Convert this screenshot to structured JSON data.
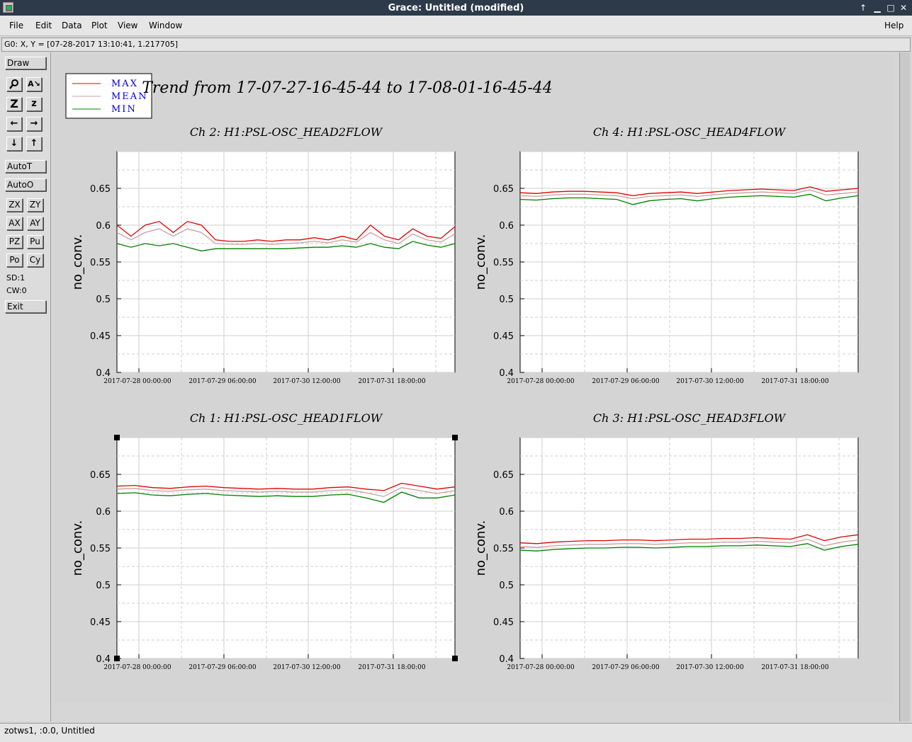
{
  "window": {
    "title": "Grace: Untitled (modified)"
  },
  "menu": {
    "file": "File",
    "edit": "Edit",
    "data": "Data",
    "plot": "Plot",
    "view": "View",
    "window": "Window",
    "help": "Help"
  },
  "location": "G0: X, Y = [07-28-2017 13:10:41, 1.217705]",
  "toolbar": {
    "draw": "Draw",
    "auto_t": "AutoT",
    "auto_o": "AutoO",
    "zx": "ZX",
    "zy": "ZY",
    "ax": "AX",
    "ay": "AY",
    "pz": "PZ",
    "pu": "Pu",
    "po": "Po",
    "cy": "Cy",
    "sd": "SD:1",
    "cw": "CW:0",
    "exit": "Exit",
    "icons": [
      "zoom-icon",
      "autoscale-text-icon",
      "zoom-z-icon",
      "zoom-z-small-icon",
      "arrow-left-icon",
      "arrow-right-icon",
      "arrow-down-icon",
      "arrow-up-icon"
    ]
  },
  "status": "zotws1, :0.0, Untitled",
  "chart_data": {
    "title": "Trend from 17-07-27-16-45-44 to 17-08-01-16-45-44",
    "legend": {
      "placement": "top-left",
      "entries": [
        {
          "label": "MAX",
          "color": "#e00000"
        },
        {
          "label": "MEAN",
          "color": "#c8a0a0"
        },
        {
          "label": "MIN",
          "color": "#008000"
        }
      ]
    },
    "colors": {
      "max": "#e00000",
      "mean": "#c8a0a0",
      "min": "#008000",
      "text": "#0000c8"
    },
    "x_ticks": [
      "2017-07-28 00:00:00",
      "2017-07-29 06:00:00",
      "2017-07-30 12:00:00",
      "2017-07-31 18:00:00"
    ],
    "y_ticks": [
      "0.4",
      "0.45",
      "0.5",
      "0.55",
      "0.6",
      "0.65"
    ],
    "ylabel": "no_conv.",
    "ylim": [
      0.4,
      0.7
    ],
    "grid": true,
    "charts": [
      {
        "type": "line",
        "title": "Ch 2: H1:PSL-OSC_HEAD2FLOW",
        "series": [
          {
            "name": "MAX",
            "values": [
              0.6,
              0.585,
              0.6,
              0.605,
              0.59,
              0.605,
              0.6,
              0.58,
              0.578,
              0.578,
              0.58,
              0.578,
              0.58,
              0.58,
              0.583,
              0.58,
              0.585,
              0.58,
              0.6,
              0.585,
              0.58,
              0.595,
              0.585,
              0.582,
              0.598
            ]
          },
          {
            "name": "MEAN",
            "values": [
              0.59,
              0.58,
              0.59,
              0.595,
              0.585,
              0.595,
              0.59,
              0.575,
              0.574,
              0.574,
              0.575,
              0.574,
              0.575,
              0.576,
              0.578,
              0.576,
              0.58,
              0.577,
              0.59,
              0.58,
              0.575,
              0.588,
              0.58,
              0.577,
              0.588
            ]
          },
          {
            "name": "MIN",
            "values": [
              0.575,
              0.57,
              0.575,
              0.572,
              0.575,
              0.57,
              0.565,
              0.568,
              0.568,
              0.568,
              0.568,
              0.568,
              0.568,
              0.569,
              0.57,
              0.57,
              0.572,
              0.57,
              0.575,
              0.57,
              0.568,
              0.578,
              0.573,
              0.57,
              0.575
            ]
          }
        ]
      },
      {
        "type": "line",
        "title": "Ch 4: H1:PSL-OSC_HEAD4FLOW",
        "series": [
          {
            "name": "MAX",
            "values": [
              0.644,
              0.643,
              0.645,
              0.646,
              0.646,
              0.645,
              0.644,
              0.64,
              0.643,
              0.644,
              0.645,
              0.643,
              0.645,
              0.647,
              0.648,
              0.649,
              0.648,
              0.647,
              0.652,
              0.646,
              0.648,
              0.65
            ]
          },
          {
            "name": "MEAN",
            "values": [
              0.64,
              0.639,
              0.641,
              0.642,
              0.642,
              0.641,
              0.64,
              0.636,
              0.639,
              0.64,
              0.641,
              0.639,
              0.641,
              0.643,
              0.644,
              0.645,
              0.644,
              0.643,
              0.648,
              0.641,
              0.643,
              0.645
            ]
          },
          {
            "name": "MIN",
            "values": [
              0.635,
              0.634,
              0.636,
              0.637,
              0.637,
              0.636,
              0.635,
              0.628,
              0.633,
              0.635,
              0.636,
              0.633,
              0.636,
              0.638,
              0.639,
              0.64,
              0.639,
              0.638,
              0.642,
              0.633,
              0.637,
              0.64
            ]
          }
        ]
      },
      {
        "type": "line",
        "title": "Ch 1: H1:PSL-OSC_HEAD1FLOW",
        "series": [
          {
            "name": "MAX",
            "values": [
              0.634,
              0.635,
              0.632,
              0.631,
              0.633,
              0.634,
              0.632,
              0.631,
              0.63,
              0.631,
              0.63,
              0.63,
              0.632,
              0.633,
              0.63,
              0.628,
              0.638,
              0.634,
              0.63,
              0.633
            ]
          },
          {
            "name": "MEAN",
            "values": [
              0.63,
              0.631,
              0.628,
              0.627,
              0.629,
              0.63,
              0.628,
              0.627,
              0.626,
              0.627,
              0.626,
              0.626,
              0.628,
              0.629,
              0.625,
              0.62,
              0.632,
              0.628,
              0.624,
              0.628
            ]
          },
          {
            "name": "MIN",
            "values": [
              0.624,
              0.625,
              0.622,
              0.621,
              0.623,
              0.624,
              0.622,
              0.621,
              0.62,
              0.621,
              0.62,
              0.62,
              0.622,
              0.623,
              0.618,
              0.612,
              0.626,
              0.618,
              0.618,
              0.622
            ]
          }
        ]
      },
      {
        "type": "line",
        "title": "Ch 3: H1:PSL-OSC_HEAD3FLOW",
        "series": [
          {
            "name": "MAX",
            "values": [
              0.557,
              0.556,
              0.558,
              0.559,
              0.56,
              0.56,
              0.561,
              0.561,
              0.56,
              0.561,
              0.562,
              0.562,
              0.563,
              0.563,
              0.564,
              0.563,
              0.562,
              0.568,
              0.56,
              0.565,
              0.568
            ]
          },
          {
            "name": "MEAN",
            "values": [
              0.552,
              0.551,
              0.553,
              0.554,
              0.555,
              0.555,
              0.556,
              0.556,
              0.555,
              0.556,
              0.557,
              0.557,
              0.558,
              0.558,
              0.559,
              0.558,
              0.557,
              0.562,
              0.553,
              0.558,
              0.561
            ]
          },
          {
            "name": "MIN",
            "values": [
              0.547,
              0.546,
              0.548,
              0.549,
              0.55,
              0.55,
              0.551,
              0.551,
              0.55,
              0.551,
              0.552,
              0.552,
              0.553,
              0.553,
              0.554,
              0.553,
              0.552,
              0.556,
              0.547,
              0.552,
              0.555
            ]
          }
        ]
      }
    ]
  }
}
